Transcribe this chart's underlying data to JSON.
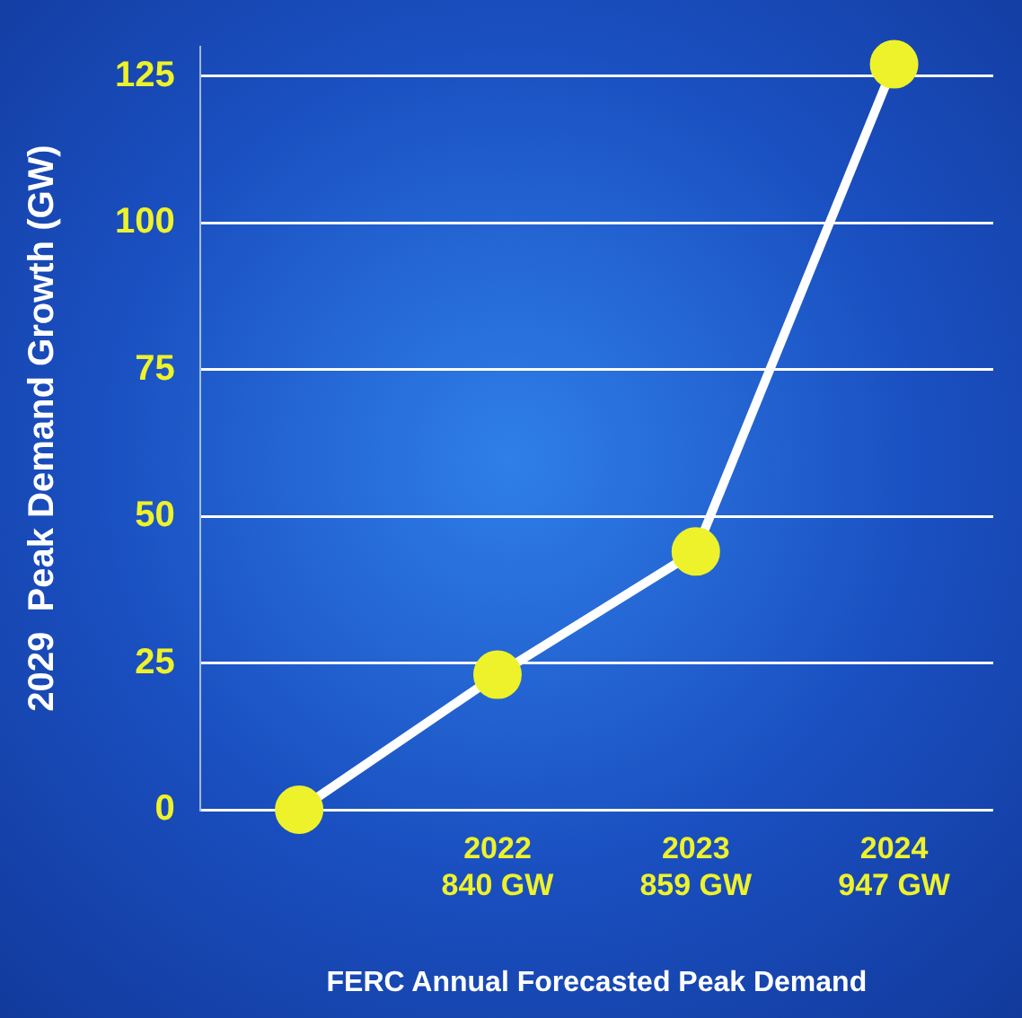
{
  "chart_data": {
    "type": "line",
    "xlabel": "FERC Annual Forecasted Peak Demand",
    "ylabel": "2029  Peak Demand Growth (GW)",
    "categories": [
      null,
      "2022\n840 GW",
      "2023\n859 GW",
      "2024\n947 GW"
    ],
    "series": [
      {
        "color": "#ffffff",
        "values": [
          0,
          23,
          44,
          127
        ]
      }
    ],
    "ylim": [
      0,
      130
    ],
    "yticks": [
      0,
      25,
      50,
      75,
      100,
      125
    ],
    "grid": "y",
    "legend": false,
    "marker": "circle",
    "line_style": "solid"
  }
}
